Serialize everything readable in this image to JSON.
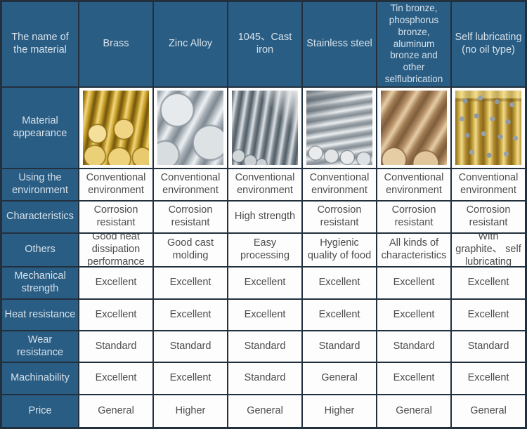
{
  "table": {
    "corner_label": "The name of the material",
    "columns": [
      "Brass",
      "Zinc Alloy",
      "1045、Cast iron",
      "Stainless steel",
      "Tin bronze, phosphorus bronze, aluminum bronze and other selflubrication",
      "Self lubricating (no oil type)"
    ],
    "appearance": {
      "label": "Material appearance",
      "images": [
        "brass-rods",
        "zinc-alloy-rods",
        "cast-iron-rods",
        "stainless-steel-rods",
        "bronze-rods",
        "self-lubricating-bushings"
      ]
    },
    "rows": [
      {
        "label": "Using the environment",
        "cells": [
          "Conventional environment",
          "Conventional environment",
          "Conventional environment",
          "Conventional environment",
          "Conventional environment",
          "Conventional environment"
        ]
      },
      {
        "label": "Characteristics",
        "cells": [
          "Corrosion resistant",
          "Corrosion resistant",
          "High strength",
          "Corrosion resistant",
          "Corrosion resistant",
          "Corrosion resistant"
        ]
      },
      {
        "label": "Others",
        "cells": [
          "Good heat dissipation performance",
          "Good cast molding",
          "Easy processing",
          "Hygienic quality of food",
          "All kinds of characteristics",
          "With graphite、 self lubricating"
        ]
      },
      {
        "label": "Mechanical strength",
        "cells": [
          "Excellent",
          "Excellent",
          "Excellent",
          "Excellent",
          "Excellent",
          "Excellent"
        ]
      },
      {
        "label": "Heat resistance",
        "cells": [
          "Excellent",
          "Excellent",
          "Excellent",
          "Excellent",
          "Excellent",
          "Excellent"
        ]
      },
      {
        "label": "Wear resistance",
        "cells": [
          "Standard",
          "Standard",
          "Standard",
          "Standard",
          "Standard",
          "Standard"
        ]
      },
      {
        "label": "Machinability",
        "cells": [
          "Excellent",
          "Excellent",
          "Standard",
          "General",
          "Excellent",
          "Excellent"
        ]
      },
      {
        "label": "Price",
        "cells": [
          "General",
          "Higher",
          "General",
          "Higher",
          "General",
          "General"
        ]
      }
    ],
    "colors": {
      "header_blue": "#2a5d84",
      "grid_line": "#22303e",
      "cell_text": "#4d4d4d",
      "header_text": "#d5e1ea"
    }
  }
}
